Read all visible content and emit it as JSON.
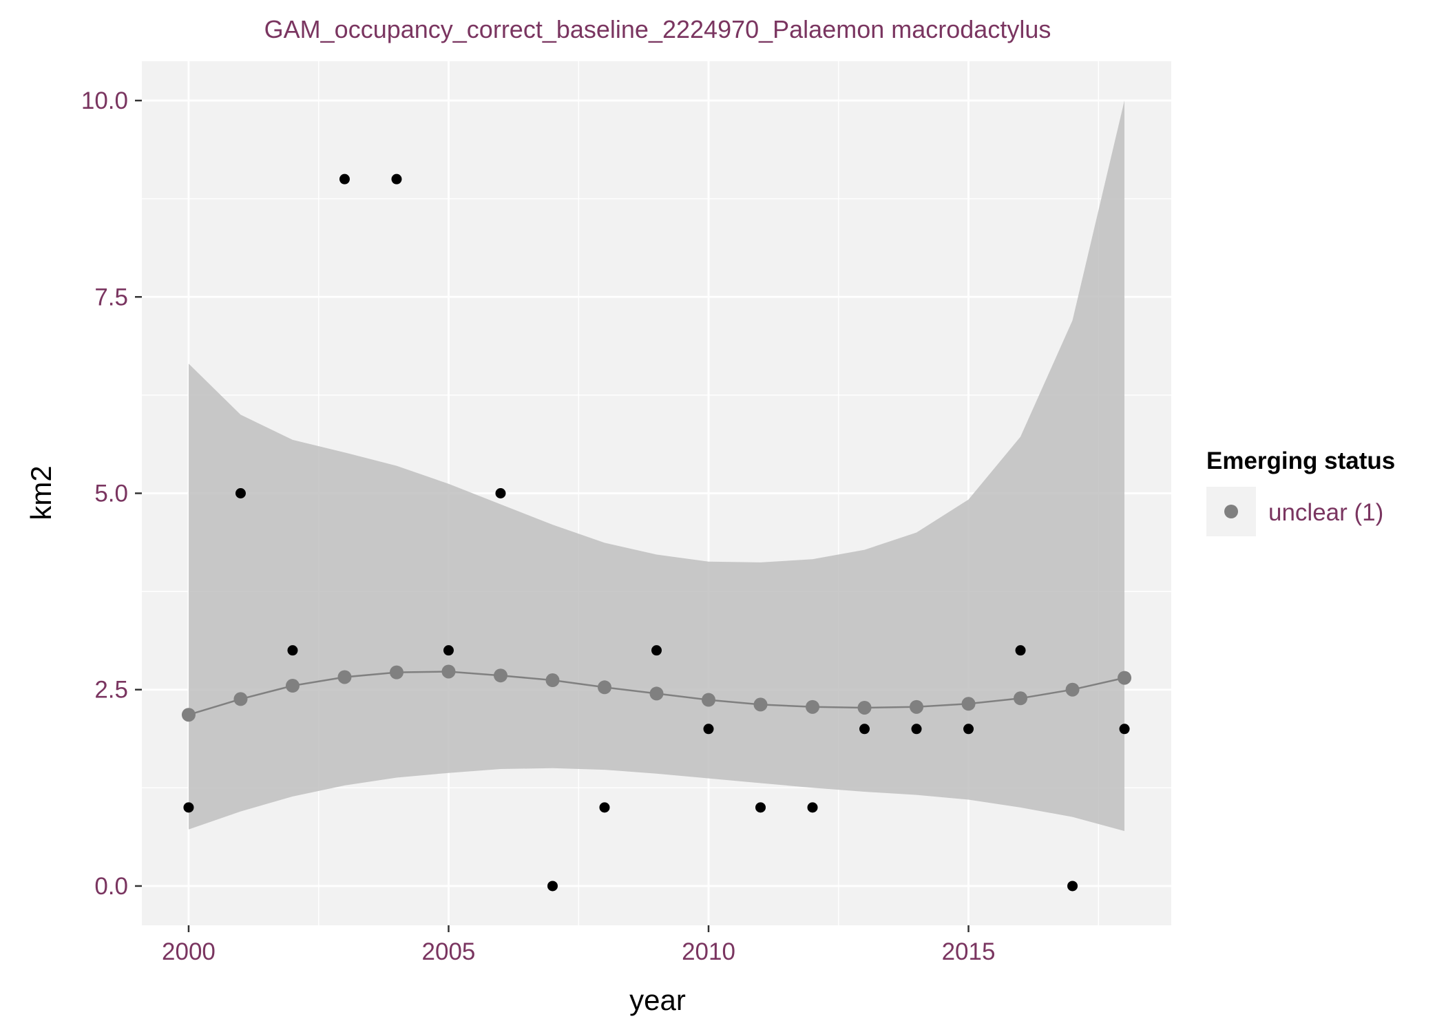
{
  "colors": {
    "accent_text": "#7a3560",
    "panel_bg": "#f2f2f2",
    "grid": "#ffffff",
    "ribbon": "#bfbfbf",
    "fit": "#808080",
    "observed": "#000000",
    "legend_key_bg": "#f2f2f2"
  },
  "chart_data": {
    "type": "scatter",
    "title": "GAM_occupancy_correct_baseline_2224970_Palaemon macrodactylus",
    "xlabel": "year",
    "ylabel": "km2",
    "xlim": [
      1999.1,
      2018.9
    ],
    "ylim": [
      -0.5,
      10.5
    ],
    "x_ticks": [
      2000,
      2005,
      2010,
      2015
    ],
    "x_tick_labels": [
      "2000",
      "2005",
      "2010",
      "2015"
    ],
    "y_ticks": [
      0,
      2.5,
      5,
      7.5,
      10
    ],
    "y_tick_labels": [
      "0.0",
      "2.5",
      "5.0",
      "7.5",
      "10.0"
    ],
    "grid": true,
    "legend": {
      "title": "Emerging status",
      "position": "right",
      "items": [
        {
          "label": "unclear (1)",
          "color": "#808080"
        }
      ]
    },
    "observed": {
      "x": [
        2000,
        2001,
        2002,
        2003,
        2004,
        2005,
        2006,
        2007,
        2008,
        2009,
        2010,
        2011,
        2012,
        2013,
        2014,
        2015,
        2016,
        2017,
        2018
      ],
      "y": [
        1,
        5,
        3,
        9,
        9,
        3,
        5,
        0,
        1,
        3,
        2,
        1,
        1,
        2,
        2,
        2,
        3,
        0,
        2
      ]
    },
    "series": [
      {
        "name": "unclear (1)",
        "x": [
          2000,
          2001,
          2002,
          2003,
          2004,
          2005,
          2006,
          2007,
          2008,
          2009,
          2010,
          2011,
          2012,
          2013,
          2014,
          2015,
          2016,
          2017,
          2018
        ],
        "fit": [
          2.18,
          2.38,
          2.55,
          2.66,
          2.72,
          2.73,
          2.68,
          2.62,
          2.53,
          2.45,
          2.37,
          2.31,
          2.28,
          2.27,
          2.28,
          2.32,
          2.39,
          2.5,
          2.65
        ],
        "lower": [
          0.72,
          0.95,
          1.14,
          1.28,
          1.38,
          1.44,
          1.49,
          1.5,
          1.48,
          1.43,
          1.37,
          1.31,
          1.25,
          1.2,
          1.16,
          1.1,
          1.0,
          0.88,
          0.7
        ],
        "upper": [
          6.65,
          6.0,
          5.68,
          5.52,
          5.35,
          5.12,
          4.86,
          4.6,
          4.37,
          4.22,
          4.13,
          4.12,
          4.16,
          4.28,
          4.5,
          4.92,
          5.72,
          7.2,
          10.0
        ]
      }
    ]
  }
}
